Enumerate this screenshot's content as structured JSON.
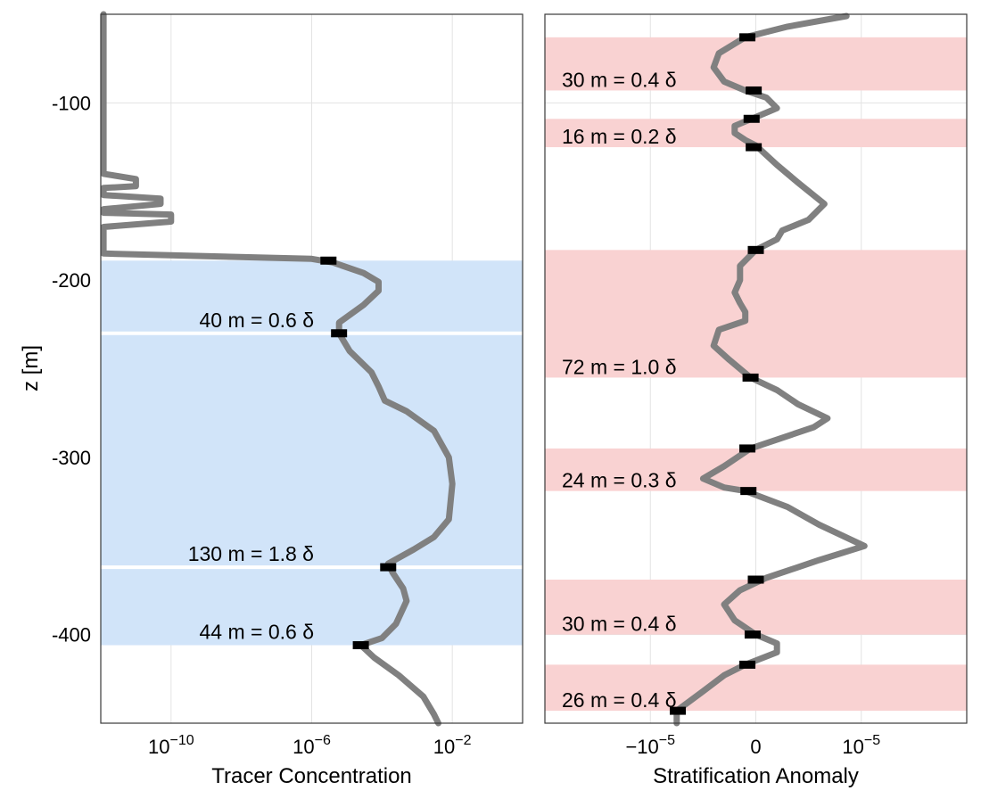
{
  "colors": {
    "curve": "#808080",
    "left_band": "#d1e4f9",
    "right_band": "#f9d2d2",
    "marker": "#000000",
    "separator": "#ffffff"
  },
  "chart_data": [
    {
      "type": "line",
      "id": "tracer",
      "xlabel": "Tracer Concentration",
      "ylabel": "z [m]",
      "xscale": "log",
      "xlim": [
        1e-12,
        1.0
      ],
      "ylim": [
        -450,
        -50
      ],
      "x_ticks": [
        {
          "value": 1e-10,
          "base": "10",
          "exp": "−10"
        },
        {
          "value": 1e-06,
          "base": "10",
          "exp": "−6"
        },
        {
          "value": 0.01,
          "base": "10",
          "exp": "−2"
        }
      ],
      "y_ticks": [
        {
          "value": -100,
          "label": "-100"
        },
        {
          "value": -200,
          "label": "-200"
        },
        {
          "value": -300,
          "label": "-300"
        },
        {
          "value": -400,
          "label": "-400"
        }
      ],
      "grid": true,
      "series": [
        {
          "points": [
            [
              1.2e-12,
              -50
            ],
            [
              1.2e-12,
              -140
            ],
            [
              1e-11,
              -143
            ],
            [
              1e-11,
              -147
            ],
            [
              1.2e-12,
              -148
            ],
            [
              1.2e-12,
              -152
            ],
            [
              5e-11,
              -154
            ],
            [
              5e-11,
              -157
            ],
            [
              1.2e-12,
              -160
            ],
            [
              1.2e-12,
              -162
            ],
            [
              1e-10,
              -163
            ],
            [
              1e-10,
              -167
            ],
            [
              1.2e-12,
              -170
            ],
            [
              1.2e-12,
              -185
            ],
            [
              1e-06,
              -188
            ],
            [
              4e-06,
              -190
            ],
            [
              3e-05,
              -196
            ],
            [
              8e-05,
              -201
            ],
            [
              8e-05,
              -206
            ],
            [
              3e-05,
              -214
            ],
            [
              6e-06,
              -224
            ],
            [
              6e-06,
              -230
            ],
            [
              1.2e-05,
              -240
            ],
            [
              5e-05,
              -252
            ],
            [
              8e-05,
              -260
            ],
            [
              0.00012,
              -268
            ],
            [
              0.0005,
              -274
            ],
            [
              0.003,
              -285
            ],
            [
              0.008,
              -300
            ],
            [
              0.01,
              -315
            ],
            [
              0.008,
              -335
            ],
            [
              0.003,
              -345
            ],
            [
              0.0008,
              -352
            ],
            [
              0.00015,
              -360
            ],
            [
              0.0002,
              -365
            ],
            [
              0.0004,
              -374
            ],
            [
              0.0005,
              -381
            ],
            [
              0.00025,
              -394
            ],
            [
              0.0001,
              -402
            ],
            [
              2.5e-05,
              -406
            ],
            [
              6e-05,
              -413
            ],
            [
              0.0003,
              -423
            ],
            [
              0.0015,
              -435
            ],
            [
              0.003,
              -445
            ],
            [
              0.004,
              -450
            ]
          ]
        }
      ],
      "bands": [
        {
          "z_top": -189,
          "z_bottom": -230,
          "label": "40 m = 0.6 δ"
        },
        {
          "z_top": -230,
          "z_bottom": -362,
          "label": "130 m = 1.8 δ"
        },
        {
          "z_top": -362,
          "z_bottom": -406,
          "label": "44 m = 0.6 δ"
        }
      ],
      "markers": [
        {
          "x": 3e-06,
          "z": -189
        },
        {
          "x": 6e-06,
          "z": -230
        },
        {
          "x": 0.00015,
          "z": -362
        },
        {
          "x": 2.5e-05,
          "z": -406
        }
      ]
    },
    {
      "type": "line",
      "id": "stratification",
      "xlabel": "Stratification Anomaly",
      "xscale": "linear",
      "xlim": [
        -2e-05,
        2e-05
      ],
      "ylim": [
        -450,
        -50
      ],
      "x_ticks": [
        {
          "value": -1e-05,
          "base": "−10",
          "exp": "−5"
        },
        {
          "value": 0,
          "base": "0",
          "exp": ""
        },
        {
          "value": 1e-05,
          "base": "10",
          "exp": "−5"
        }
      ],
      "grid": true,
      "series": [
        {
          "points": [
            [
              8.6e-06,
              -51
            ],
            [
              3e-06,
              -57
            ],
            [
              -1e-06,
              -63
            ],
            [
              -3.5e-06,
              -72
            ],
            [
              -4e-06,
              -80
            ],
            [
              -3e-06,
              -88
            ],
            [
              -1e-06,
              -93
            ],
            [
              1e-06,
              -97
            ],
            [
              2e-06,
              -103
            ],
            [
              0,
              -108
            ],
            [
              -2e-06,
              -113
            ],
            [
              -2e-06,
              -117
            ],
            [
              -1e-06,
              -121
            ],
            [
              0,
              -124
            ],
            [
              2e-06,
              -135
            ],
            [
              4e-06,
              -145
            ],
            [
              6.5e-06,
              -157
            ],
            [
              5e-06,
              -166
            ],
            [
              2.5e-06,
              -172
            ],
            [
              2e-06,
              -177
            ],
            [
              0,
              -183
            ],
            [
              -1.5e-06,
              -192
            ],
            [
              -1.5e-06,
              -200
            ],
            [
              -2e-06,
              -207
            ],
            [
              -1.5e-06,
              -213
            ],
            [
              -1e-06,
              -218
            ],
            [
              -1e-06,
              -223
            ],
            [
              -3.5e-06,
              -228
            ],
            [
              -4e-06,
              -237
            ],
            [
              -2.5e-06,
              -245
            ],
            [
              -5e-07,
              -255
            ],
            [
              2e-06,
              -262
            ],
            [
              4e-06,
              -270
            ],
            [
              6.8e-06,
              -278
            ],
            [
              5.5e-06,
              -283
            ],
            [
              -5e-07,
              -295
            ],
            [
              -3e-06,
              -305
            ],
            [
              -5e-06,
              -312
            ],
            [
              -3e-06,
              -317
            ],
            [
              -1e-06,
              -319
            ],
            [
              3e-06,
              -328
            ],
            [
              6e-06,
              -338
            ],
            [
              1.03e-05,
              -350
            ],
            [
              6e-06,
              -358
            ],
            [
              1e-06,
              -368
            ],
            [
              -1.5e-06,
              -375
            ],
            [
              -3e-06,
              -383
            ],
            [
              -2e-06,
              -392
            ],
            [
              0,
              -400
            ],
            [
              2e-06,
              -405
            ],
            [
              2e-06,
              -410
            ],
            [
              -1e-06,
              -417
            ],
            [
              -3e-06,
              -423
            ],
            [
              -5e-06,
              -432
            ],
            [
              -7.5e-06,
              -443
            ],
            [
              -7.5e-06,
              -450
            ]
          ]
        }
      ],
      "bands": [
        {
          "z_top": -63,
          "z_bottom": -93,
          "label": "30 m = 0.4 δ"
        },
        {
          "z_top": -109,
          "z_bottom": -125,
          "label": "16 m = 0.2 δ"
        },
        {
          "z_top": -183,
          "z_bottom": -255,
          "label": "72 m = 1.0 δ"
        },
        {
          "z_top": -295,
          "z_bottom": -319,
          "label": "24 m = 0.3 δ"
        },
        {
          "z_top": -369,
          "z_bottom": -400,
          "label": "30 m = 0.4 δ"
        },
        {
          "z_top": -417,
          "z_bottom": -443,
          "label": "26 m = 0.4 δ"
        }
      ],
      "markers": [
        {
          "x": -8e-07,
          "z": -63
        },
        {
          "x": -2e-07,
          "z": -93
        },
        {
          "x": -4e-07,
          "z": -109
        },
        {
          "x": -2e-07,
          "z": -125
        },
        {
          "x": 0,
          "z": -183
        },
        {
          "x": -5e-07,
          "z": -255
        },
        {
          "x": -8e-07,
          "z": -295
        },
        {
          "x": -7e-07,
          "z": -319
        },
        {
          "x": 0,
          "z": -369
        },
        {
          "x": -3e-07,
          "z": -400
        },
        {
          "x": -8e-07,
          "z": -417
        },
        {
          "x": -7.4e-06,
          "z": -443
        }
      ]
    }
  ]
}
